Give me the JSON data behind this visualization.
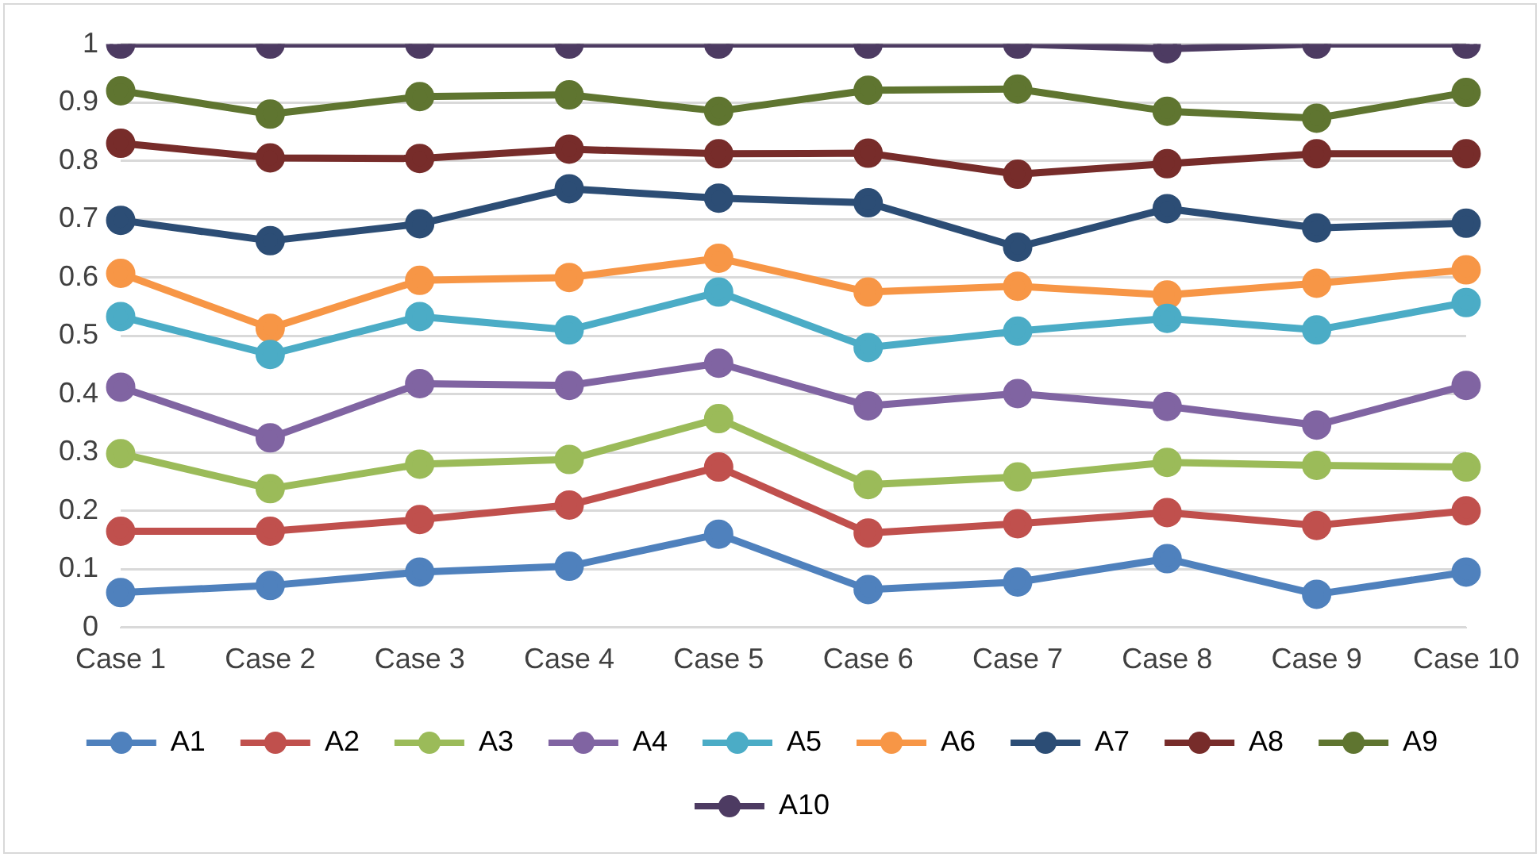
{
  "chart_data": {
    "type": "line",
    "categories": [
      "Case 1",
      "Case 2",
      "Case 3",
      "Case 4",
      "Case 5",
      "Case 6",
      "Case 7",
      "Case 8",
      "Case 9",
      "Case 10"
    ],
    "ylim": [
      0,
      1
    ],
    "yticks": [
      0,
      0.1,
      0.2,
      0.3,
      0.4,
      0.5,
      0.6,
      0.7,
      0.8,
      0.9,
      1
    ],
    "grid": "y",
    "legend": "bottom",
    "marker": "circle",
    "line_style": "solid",
    "series": [
      {
        "name": "A1",
        "color": "#4f81bd",
        "values": [
          0.06,
          0.072,
          0.095,
          0.105,
          0.16,
          0.065,
          0.078,
          0.118,
          0.057,
          0.095
        ]
      },
      {
        "name": "A2",
        "color": "#c0504d",
        "values": [
          0.165,
          0.165,
          0.185,
          0.21,
          0.275,
          0.162,
          0.178,
          0.197,
          0.175,
          0.2
        ]
      },
      {
        "name": "A3",
        "color": "#9bbb59",
        "values": [
          0.298,
          0.238,
          0.28,
          0.288,
          0.358,
          0.245,
          0.258,
          0.283,
          0.278,
          0.275
        ]
      },
      {
        "name": "A4",
        "color": "#8064a2",
        "values": [
          0.412,
          0.325,
          0.418,
          0.415,
          0.453,
          0.38,
          0.401,
          0.379,
          0.347,
          0.415
        ]
      },
      {
        "name": "A5",
        "color": "#4bacc6",
        "values": [
          0.533,
          0.468,
          0.533,
          0.51,
          0.575,
          0.48,
          0.508,
          0.53,
          0.51,
          0.557
        ]
      },
      {
        "name": "A6",
        "color": "#f79646",
        "values": [
          0.607,
          0.513,
          0.595,
          0.6,
          0.633,
          0.575,
          0.585,
          0.57,
          0.59,
          0.613
        ]
      },
      {
        "name": "A7",
        "color": "#2c4d75",
        "values": [
          0.698,
          0.663,
          0.692,
          0.752,
          0.736,
          0.728,
          0.652,
          0.718,
          0.685,
          0.693
        ]
      },
      {
        "name": "A8",
        "color": "#772c2a",
        "values": [
          0.83,
          0.805,
          0.804,
          0.82,
          0.812,
          0.813,
          0.777,
          0.795,
          0.812,
          0.812
        ]
      },
      {
        "name": "A9",
        "color": "#5f7530",
        "values": [
          0.92,
          0.88,
          0.91,
          0.913,
          0.885,
          0.921,
          0.923,
          0.885,
          0.873,
          0.917
        ]
      },
      {
        "name": "A10",
        "color": "#4d3b62",
        "values": [
          1,
          1,
          1,
          1,
          1,
          1,
          1,
          0.992,
          1,
          1
        ]
      }
    ]
  }
}
